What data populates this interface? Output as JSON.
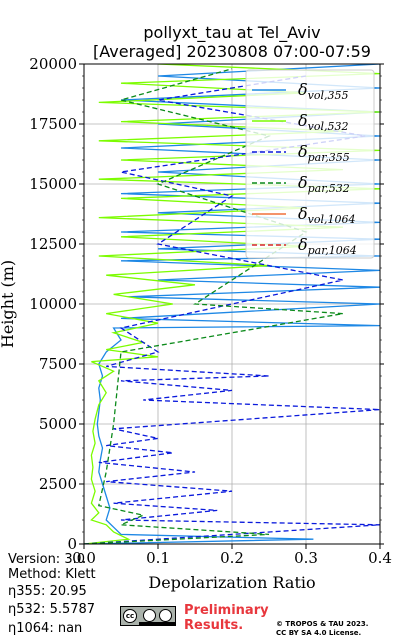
{
  "chart_data": {
    "type": "line",
    "title": "pollyxt_tau at Tel_Aviv",
    "subtitle": "[Averaged] 20230808 07:00-07:59",
    "xlabel": "Depolarization Ratio",
    "ylabel": "Height (m)",
    "xlim": [
      0.0,
      0.4
    ],
    "ylim": [
      0,
      20000
    ],
    "x_ticks": [
      "0.0",
      "0.1",
      "0.2",
      "0.3",
      "0.4"
    ],
    "y_ticks": [
      "0",
      "2500",
      "5000",
      "7500",
      "10000",
      "12500",
      "15000",
      "17500",
      "20000"
    ],
    "grid": true,
    "legend_position": "top-right",
    "series": [
      {
        "name": "δvol,355",
        "label_base": "δ",
        "label_sub": "vol,355",
        "color": "#1e88e5",
        "dash": "solid",
        "points": [
          [
            0.0,
            0
          ],
          [
            0.31,
            200
          ],
          [
            0.05,
            400
          ],
          [
            0.04,
            700
          ],
          [
            0.03,
            1000
          ],
          [
            0.035,
            1500
          ],
          [
            0.03,
            2000
          ],
          [
            0.025,
            2500
          ],
          [
            0.02,
            3000
          ],
          [
            0.022,
            3500
          ],
          [
            0.025,
            4000
          ],
          [
            0.02,
            4500
          ],
          [
            0.018,
            5000
          ],
          [
            0.02,
            5500
          ],
          [
            0.022,
            6000
          ],
          [
            0.02,
            6500
          ],
          [
            0.025,
            7000
          ],
          [
            0.02,
            7500
          ],
          [
            0.03,
            8000
          ],
          [
            0.05,
            8500
          ],
          [
            0.04,
            9000
          ],
          [
            0.4,
            9100
          ],
          [
            0.05,
            9400
          ],
          [
            0.4,
            10000
          ],
          [
            0.06,
            10300
          ],
          [
            0.4,
            10700
          ],
          [
            0.1,
            11000
          ],
          [
            0.4,
            11400
          ],
          [
            0.05,
            11800
          ],
          [
            0.4,
            12000
          ],
          [
            0.1,
            12300
          ],
          [
            0.4,
            12700
          ],
          [
            0.05,
            13000
          ],
          [
            0.4,
            13400
          ],
          [
            0.1,
            13800
          ],
          [
            0.4,
            14200
          ],
          [
            0.05,
            14600
          ],
          [
            0.4,
            15000
          ],
          [
            0.1,
            15500
          ],
          [
            0.4,
            16000
          ],
          [
            0.05,
            16500
          ],
          [
            0.4,
            17000
          ],
          [
            0.1,
            17500
          ],
          [
            0.4,
            18000
          ],
          [
            0.05,
            18500
          ],
          [
            0.4,
            19000
          ],
          [
            0.1,
            19500
          ],
          [
            0.4,
            20000
          ]
        ]
      },
      {
        "name": "δvol,532",
        "label_base": "δ",
        "label_sub": "vol,532",
        "color": "#7cfc00",
        "dash": "solid",
        "points": [
          [
            0.0,
            0
          ],
          [
            0.06,
            200
          ],
          [
            0.04,
            500
          ],
          [
            0.03,
            800
          ],
          [
            0.01,
            1000
          ],
          [
            0.02,
            1300
          ],
          [
            0.01,
            1700
          ],
          [
            0.015,
            2200
          ],
          [
            0.01,
            2700
          ],
          [
            0.012,
            3200
          ],
          [
            0.01,
            3700
          ],
          [
            0.015,
            4200
          ],
          [
            0.012,
            4700
          ],
          [
            0.015,
            5200
          ],
          [
            0.02,
            5800
          ],
          [
            0.03,
            6300
          ],
          [
            0.02,
            6800
          ],
          [
            0.04,
            7200
          ],
          [
            0.01,
            7600
          ],
          [
            0.1,
            7800
          ],
          [
            0.03,
            8100
          ],
          [
            0.08,
            8400
          ],
          [
            0.04,
            8800
          ],
          [
            0.1,
            9200
          ],
          [
            0.03,
            9600
          ],
          [
            0.12,
            10000
          ],
          [
            0.04,
            10400
          ],
          [
            0.15,
            10800
          ],
          [
            0.03,
            11200
          ],
          [
            0.25,
            11600
          ],
          [
            0.02,
            12000
          ],
          [
            0.3,
            12400
          ],
          [
            0.05,
            12800
          ],
          [
            0.35,
            13200
          ],
          [
            0.02,
            13600
          ],
          [
            0.3,
            14000
          ],
          [
            0.05,
            14400
          ],
          [
            0.4,
            14800
          ],
          [
            0.02,
            15200
          ],
          [
            0.35,
            15600
          ],
          [
            0.05,
            16000
          ],
          [
            0.4,
            16400
          ],
          [
            0.02,
            16800
          ],
          [
            0.35,
            17200
          ],
          [
            0.05,
            17600
          ],
          [
            0.4,
            18000
          ],
          [
            0.02,
            18400
          ],
          [
            0.3,
            18800
          ],
          [
            0.05,
            19200
          ],
          [
            0.4,
            19600
          ],
          [
            0.1,
            20000
          ]
        ]
      },
      {
        "name": "δpar,355",
        "label_base": "δ",
        "label_sub": "par,355",
        "color": "#0a1adc",
        "dash": "dashed",
        "points": [
          [
            0.0,
            0
          ],
          [
            0.4,
            800
          ],
          [
            0.05,
            1000
          ],
          [
            0.18,
            1400
          ],
          [
            0.04,
            1700
          ],
          [
            0.2,
            2200
          ],
          [
            0.03,
            2600
          ],
          [
            0.15,
            3000
          ],
          [
            0.02,
            3400
          ],
          [
            0.12,
            3800
          ],
          [
            0.03,
            4100
          ],
          [
            0.1,
            4400
          ],
          [
            0.04,
            4800
          ],
          [
            0.4,
            5600
          ],
          [
            0.08,
            6000
          ],
          [
            0.2,
            6400
          ],
          [
            0.05,
            6800
          ],
          [
            0.25,
            7000
          ],
          [
            0.03,
            7400
          ],
          [
            0.1,
            8000
          ],
          [
            0.05,
            9000
          ],
          [
            0.35,
            11000
          ],
          [
            0.1,
            12500
          ],
          [
            0.2,
            14500
          ],
          [
            0.05,
            15500
          ],
          [
            0.38,
            17000
          ],
          [
            0.1,
            18500
          ],
          [
            0.3,
            19500
          ]
        ]
      },
      {
        "name": "δpar,532",
        "label_base": "δ",
        "label_sub": "par,532",
        "color": "#0b8a1a",
        "dash": "dashed",
        "points": [
          [
            0.0,
            0
          ],
          [
            0.25,
            400
          ],
          [
            0.05,
            800
          ],
          [
            0.08,
            1200
          ],
          [
            0.02,
            1600
          ],
          [
            0.03,
            3000
          ],
          [
            0.04,
            5000
          ],
          [
            0.05,
            8000
          ],
          [
            0.35,
            9600
          ],
          [
            0.15,
            10000
          ],
          [
            0.3,
            13000
          ],
          [
            0.1,
            15000
          ],
          [
            0.25,
            17000
          ],
          [
            0.05,
            18500
          ],
          [
            0.2,
            19800
          ]
        ]
      },
      {
        "name": "δvol,1064",
        "label_base": "δ",
        "label_sub": "vol,1064",
        "color": "#f0703a",
        "dash": "solid",
        "points": []
      },
      {
        "name": "δpar,1064",
        "label_base": "δ",
        "label_sub": "par,1064",
        "color": "#d62728",
        "dash": "dashed",
        "points": []
      }
    ]
  },
  "info": {
    "version": "Version: 3.0",
    "method": "Method: Klett",
    "eta355": "η355:  20.95",
    "eta532": "η532: 5.5787",
    "eta1064": "η1064:    nan"
  },
  "license_badge": {
    "cc": "cc"
  },
  "preliminary": [
    "Preliminary",
    "Results."
  ],
  "copyright": [
    "© TROPOS & TAU 2023.",
    "CC BY SA 4.0 License."
  ]
}
